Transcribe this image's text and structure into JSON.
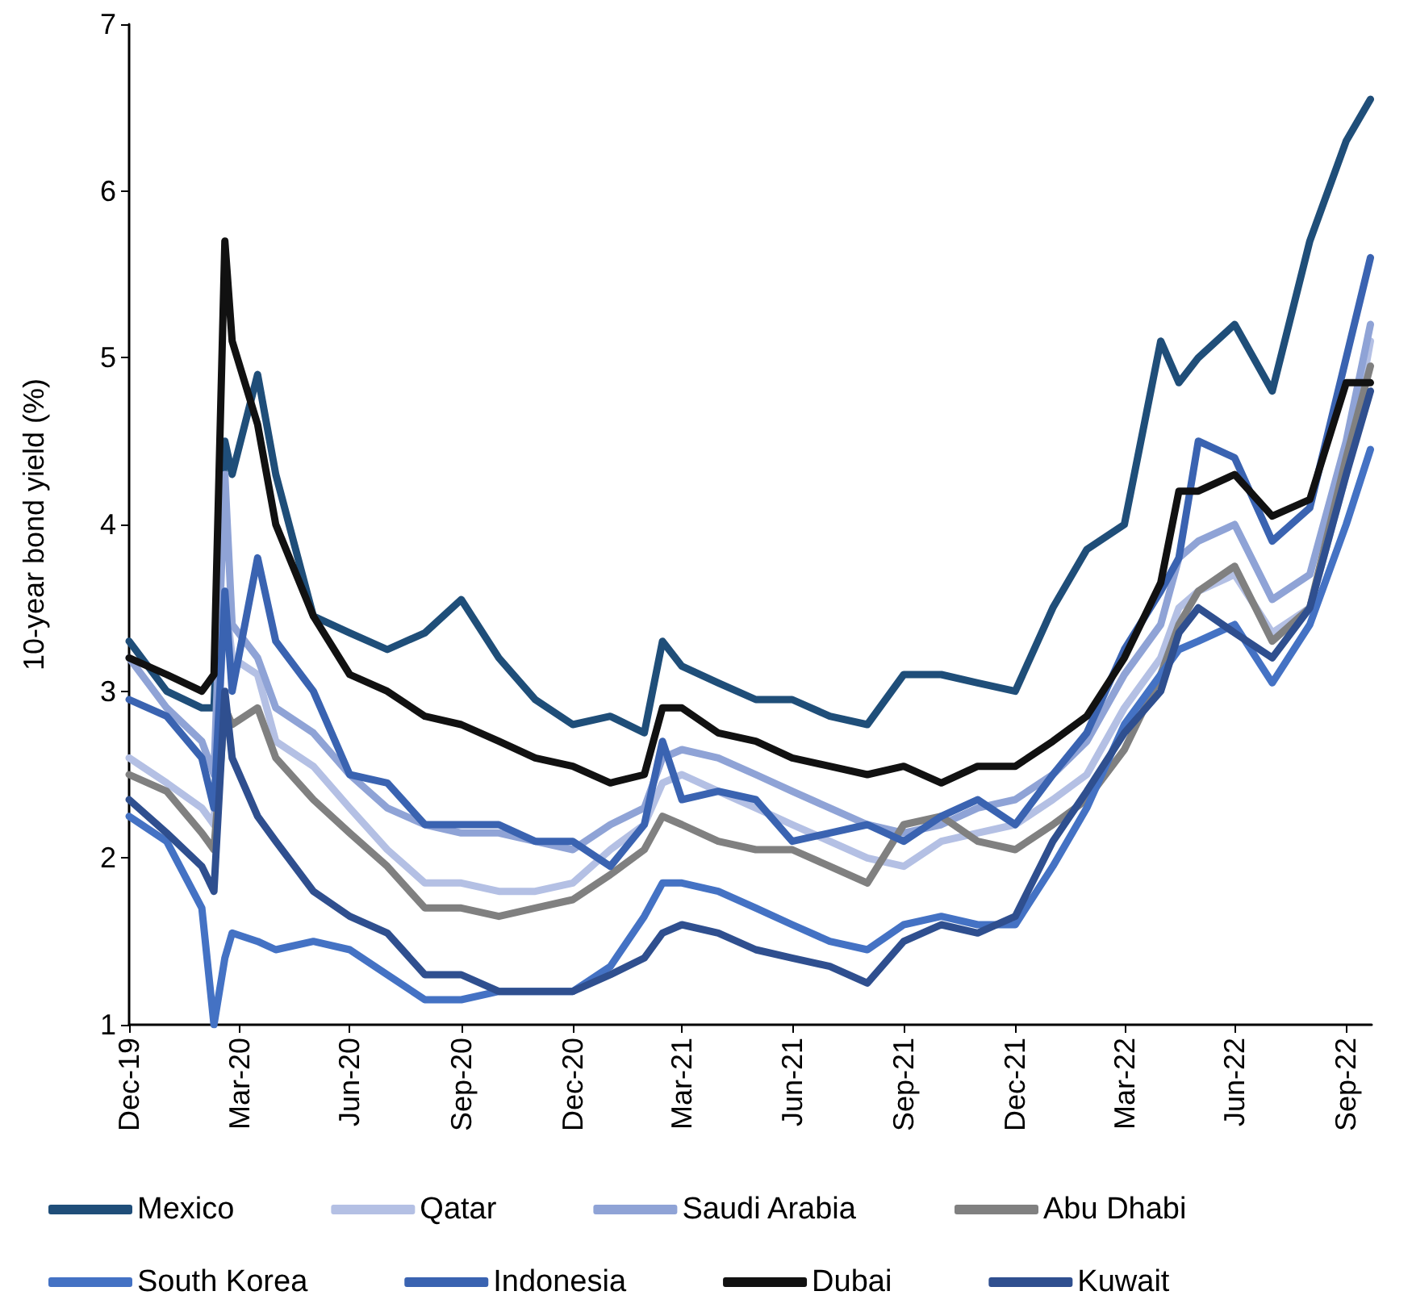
{
  "chart_data": {
    "type": "line",
    "ylabel": "10-year bond yield (%)",
    "ylim": [
      1,
      7
    ],
    "yticks": [
      1,
      2,
      3,
      4,
      5,
      6,
      7
    ],
    "xlim": [
      "2019-12-31",
      "2022-10-21"
    ],
    "xticks": [
      {
        "value": "2019-12-31",
        "label": "Dec-19"
      },
      {
        "value": "2020-03-31",
        "label": "Mar-20"
      },
      {
        "value": "2020-06-30",
        "label": "Jun-20"
      },
      {
        "value": "2020-09-30",
        "label": "Sep-20"
      },
      {
        "value": "2020-12-31",
        "label": "Dec-20"
      },
      {
        "value": "2021-03-31",
        "label": "Mar-21"
      },
      {
        "value": "2021-06-30",
        "label": "Jun-21"
      },
      {
        "value": "2021-09-30",
        "label": "Sep-21"
      },
      {
        "value": "2021-12-31",
        "label": "Dec-21"
      },
      {
        "value": "2022-03-31",
        "label": "Mar-22"
      },
      {
        "value": "2022-06-30",
        "label": "Jun-22"
      },
      {
        "value": "2022-09-30",
        "label": "Sep-22"
      }
    ],
    "x": [
      "2019-12-31",
      "2020-01-31",
      "2020-02-29",
      "2020-03-10",
      "2020-03-19",
      "2020-03-25",
      "2020-04-15",
      "2020-04-30",
      "2020-05-31",
      "2020-06-30",
      "2020-07-31",
      "2020-08-31",
      "2020-09-30",
      "2020-10-31",
      "2020-11-30",
      "2020-12-31",
      "2021-01-31",
      "2021-02-28",
      "2021-03-15",
      "2021-03-31",
      "2021-04-30",
      "2021-05-31",
      "2021-06-30",
      "2021-07-31",
      "2021-08-31",
      "2021-09-30",
      "2021-10-31",
      "2021-11-30",
      "2021-12-31",
      "2022-01-31",
      "2022-02-28",
      "2022-03-31",
      "2022-04-30",
      "2022-05-15",
      "2022-05-31",
      "2022-06-30",
      "2022-07-31",
      "2022-08-31",
      "2022-09-30",
      "2022-10-20"
    ],
    "grid": false,
    "legend": "bottom",
    "marker": "none",
    "line_style": "solid",
    "series": [
      {
        "name": "Mexico",
        "color": "#1f4e79",
        "values": [
          3.3,
          3.0,
          2.9,
          2.9,
          4.5,
          4.3,
          4.9,
          4.3,
          3.45,
          3.35,
          3.25,
          3.35,
          3.55,
          3.2,
          2.95,
          2.8,
          2.85,
          2.75,
          3.3,
          3.15,
          3.05,
          2.95,
          2.95,
          2.85,
          2.8,
          3.1,
          3.1,
          3.05,
          3.0,
          3.5,
          3.85,
          4.0,
          5.1,
          4.85,
          5.0,
          5.2,
          4.8,
          5.7,
          6.3,
          6.55
        ]
      },
      {
        "name": "Qatar",
        "color": "#b4c0e4",
        "values": [
          2.6,
          2.45,
          2.3,
          2.2,
          3.6,
          3.2,
          3.1,
          2.7,
          2.55,
          2.3,
          2.05,
          1.85,
          1.85,
          1.8,
          1.8,
          1.85,
          2.05,
          2.2,
          2.45,
          2.5,
          2.4,
          2.3,
          2.2,
          2.1,
          2.0,
          1.95,
          2.1,
          2.15,
          2.2,
          2.35,
          2.5,
          2.9,
          3.2,
          3.5,
          3.6,
          3.7,
          3.35,
          3.5,
          4.3,
          5.1
        ]
      },
      {
        "name": "Saudi Arabia",
        "color": "#8fa3d6",
        "values": [
          3.2,
          2.9,
          2.7,
          2.5,
          4.3,
          3.4,
          3.2,
          2.9,
          2.75,
          2.5,
          2.3,
          2.2,
          2.15,
          2.15,
          2.1,
          2.05,
          2.2,
          2.3,
          2.6,
          2.65,
          2.6,
          2.5,
          2.4,
          2.3,
          2.2,
          2.15,
          2.2,
          2.3,
          2.35,
          2.5,
          2.7,
          3.1,
          3.4,
          3.8,
          3.9,
          4.0,
          3.55,
          3.7,
          4.5,
          5.2
        ]
      },
      {
        "name": "Abu Dhabi",
        "color": "#808080",
        "values": [
          2.5,
          2.4,
          2.15,
          2.05,
          2.9,
          2.8,
          2.9,
          2.6,
          2.35,
          2.15,
          1.95,
          1.7,
          1.7,
          1.65,
          1.7,
          1.75,
          1.9,
          2.05,
          2.25,
          2.2,
          2.1,
          2.05,
          2.05,
          1.95,
          1.85,
          2.2,
          2.25,
          2.1,
          2.05,
          2.2,
          2.35,
          2.65,
          3.1,
          3.4,
          3.6,
          3.75,
          3.3,
          3.5,
          4.4,
          4.95
        ]
      },
      {
        "name": "South Korea",
        "color": "#4472c4",
        "values": [
          2.25,
          2.1,
          1.7,
          1.0,
          1.4,
          1.55,
          1.5,
          1.45,
          1.5,
          1.45,
          1.3,
          1.15,
          1.15,
          1.2,
          1.2,
          1.2,
          1.35,
          1.65,
          1.85,
          1.85,
          1.8,
          1.7,
          1.6,
          1.5,
          1.45,
          1.6,
          1.65,
          1.6,
          1.6,
          1.95,
          2.3,
          2.8,
          3.1,
          3.25,
          3.3,
          3.4,
          3.05,
          3.4,
          4.0,
          4.45
        ]
      },
      {
        "name": "Indonesia",
        "color": "#3a63b1",
        "values": [
          2.95,
          2.85,
          2.6,
          2.3,
          3.6,
          3.0,
          3.8,
          3.3,
          3.0,
          2.5,
          2.45,
          2.2,
          2.2,
          2.2,
          2.1,
          2.1,
          1.95,
          2.2,
          2.7,
          2.35,
          2.4,
          2.35,
          2.1,
          2.15,
          2.2,
          2.1,
          2.25,
          2.35,
          2.2,
          2.5,
          2.75,
          3.25,
          3.6,
          3.8,
          4.5,
          4.4,
          3.9,
          4.1,
          5.0,
          5.6
        ]
      },
      {
        "name": "Dubai",
        "color": "#111111",
        "values": [
          3.2,
          3.1,
          3.0,
          3.1,
          5.7,
          5.1,
          4.6,
          4.0,
          3.45,
          3.1,
          3.0,
          2.85,
          2.8,
          2.7,
          2.6,
          2.55,
          2.45,
          2.5,
          2.9,
          2.9,
          2.75,
          2.7,
          2.6,
          2.55,
          2.5,
          2.55,
          2.45,
          2.55,
          2.55,
          2.7,
          2.85,
          3.2,
          3.65,
          4.2,
          4.2,
          4.3,
          4.05,
          4.15,
          4.85,
          4.85
        ]
      },
      {
        "name": "Kuwait",
        "color": "#2f4f8f",
        "values": [
          2.35,
          2.15,
          1.95,
          1.8,
          3.0,
          2.6,
          2.25,
          2.1,
          1.8,
          1.65,
          1.55,
          1.3,
          1.3,
          1.2,
          1.2,
          1.2,
          1.3,
          1.4,
          1.55,
          1.6,
          1.55,
          1.45,
          1.4,
          1.35,
          1.25,
          1.5,
          1.6,
          1.55,
          1.65,
          2.1,
          2.4,
          2.75,
          3.0,
          3.35,
          3.5,
          3.35,
          3.2,
          3.5,
          4.3,
          4.8
        ]
      }
    ]
  }
}
